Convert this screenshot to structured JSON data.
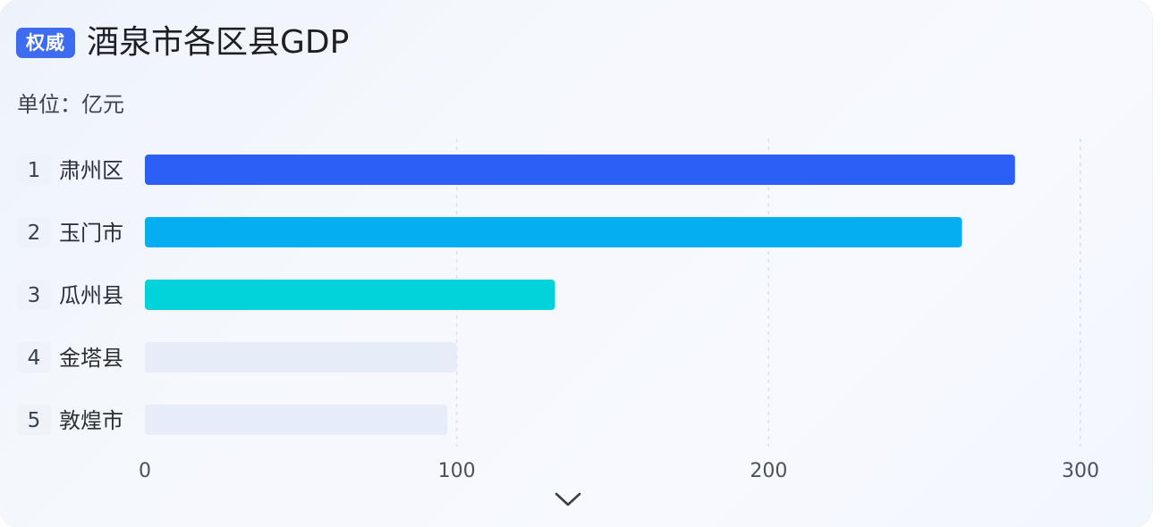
{
  "header": {
    "badge": "权威",
    "title": "酒泉市各区县GDP",
    "unit": "单位：亿元"
  },
  "colors": {
    "badge": "#3d6cf0",
    "rank1": "#2b5ff5",
    "rank2": "#04aef0",
    "rank3": "#02d2da",
    "rank_other": "#e7ecf9"
  },
  "chart_data": {
    "type": "bar",
    "orientation": "horizontal",
    "title": "酒泉市各区县GDP",
    "unit": "单位：亿元",
    "categories": [
      "肃州区",
      "玉门市",
      "瓜州县",
      "金塔县",
      "敦煌市"
    ],
    "ranks": [
      "1",
      "2",
      "3",
      "4",
      "5"
    ],
    "values": [
      279,
      262,
      131.5,
      100,
      97
    ],
    "xlim": [
      0,
      300
    ],
    "xticks": [
      0,
      100,
      200,
      300
    ],
    "grid": true,
    "bar_colors": [
      "#2b5ff5",
      "#04aef0",
      "#02d2da",
      "#e7ecf9",
      "#e7ecf9"
    ]
  },
  "footer": {
    "more_icon": "chevron-down-icon"
  }
}
